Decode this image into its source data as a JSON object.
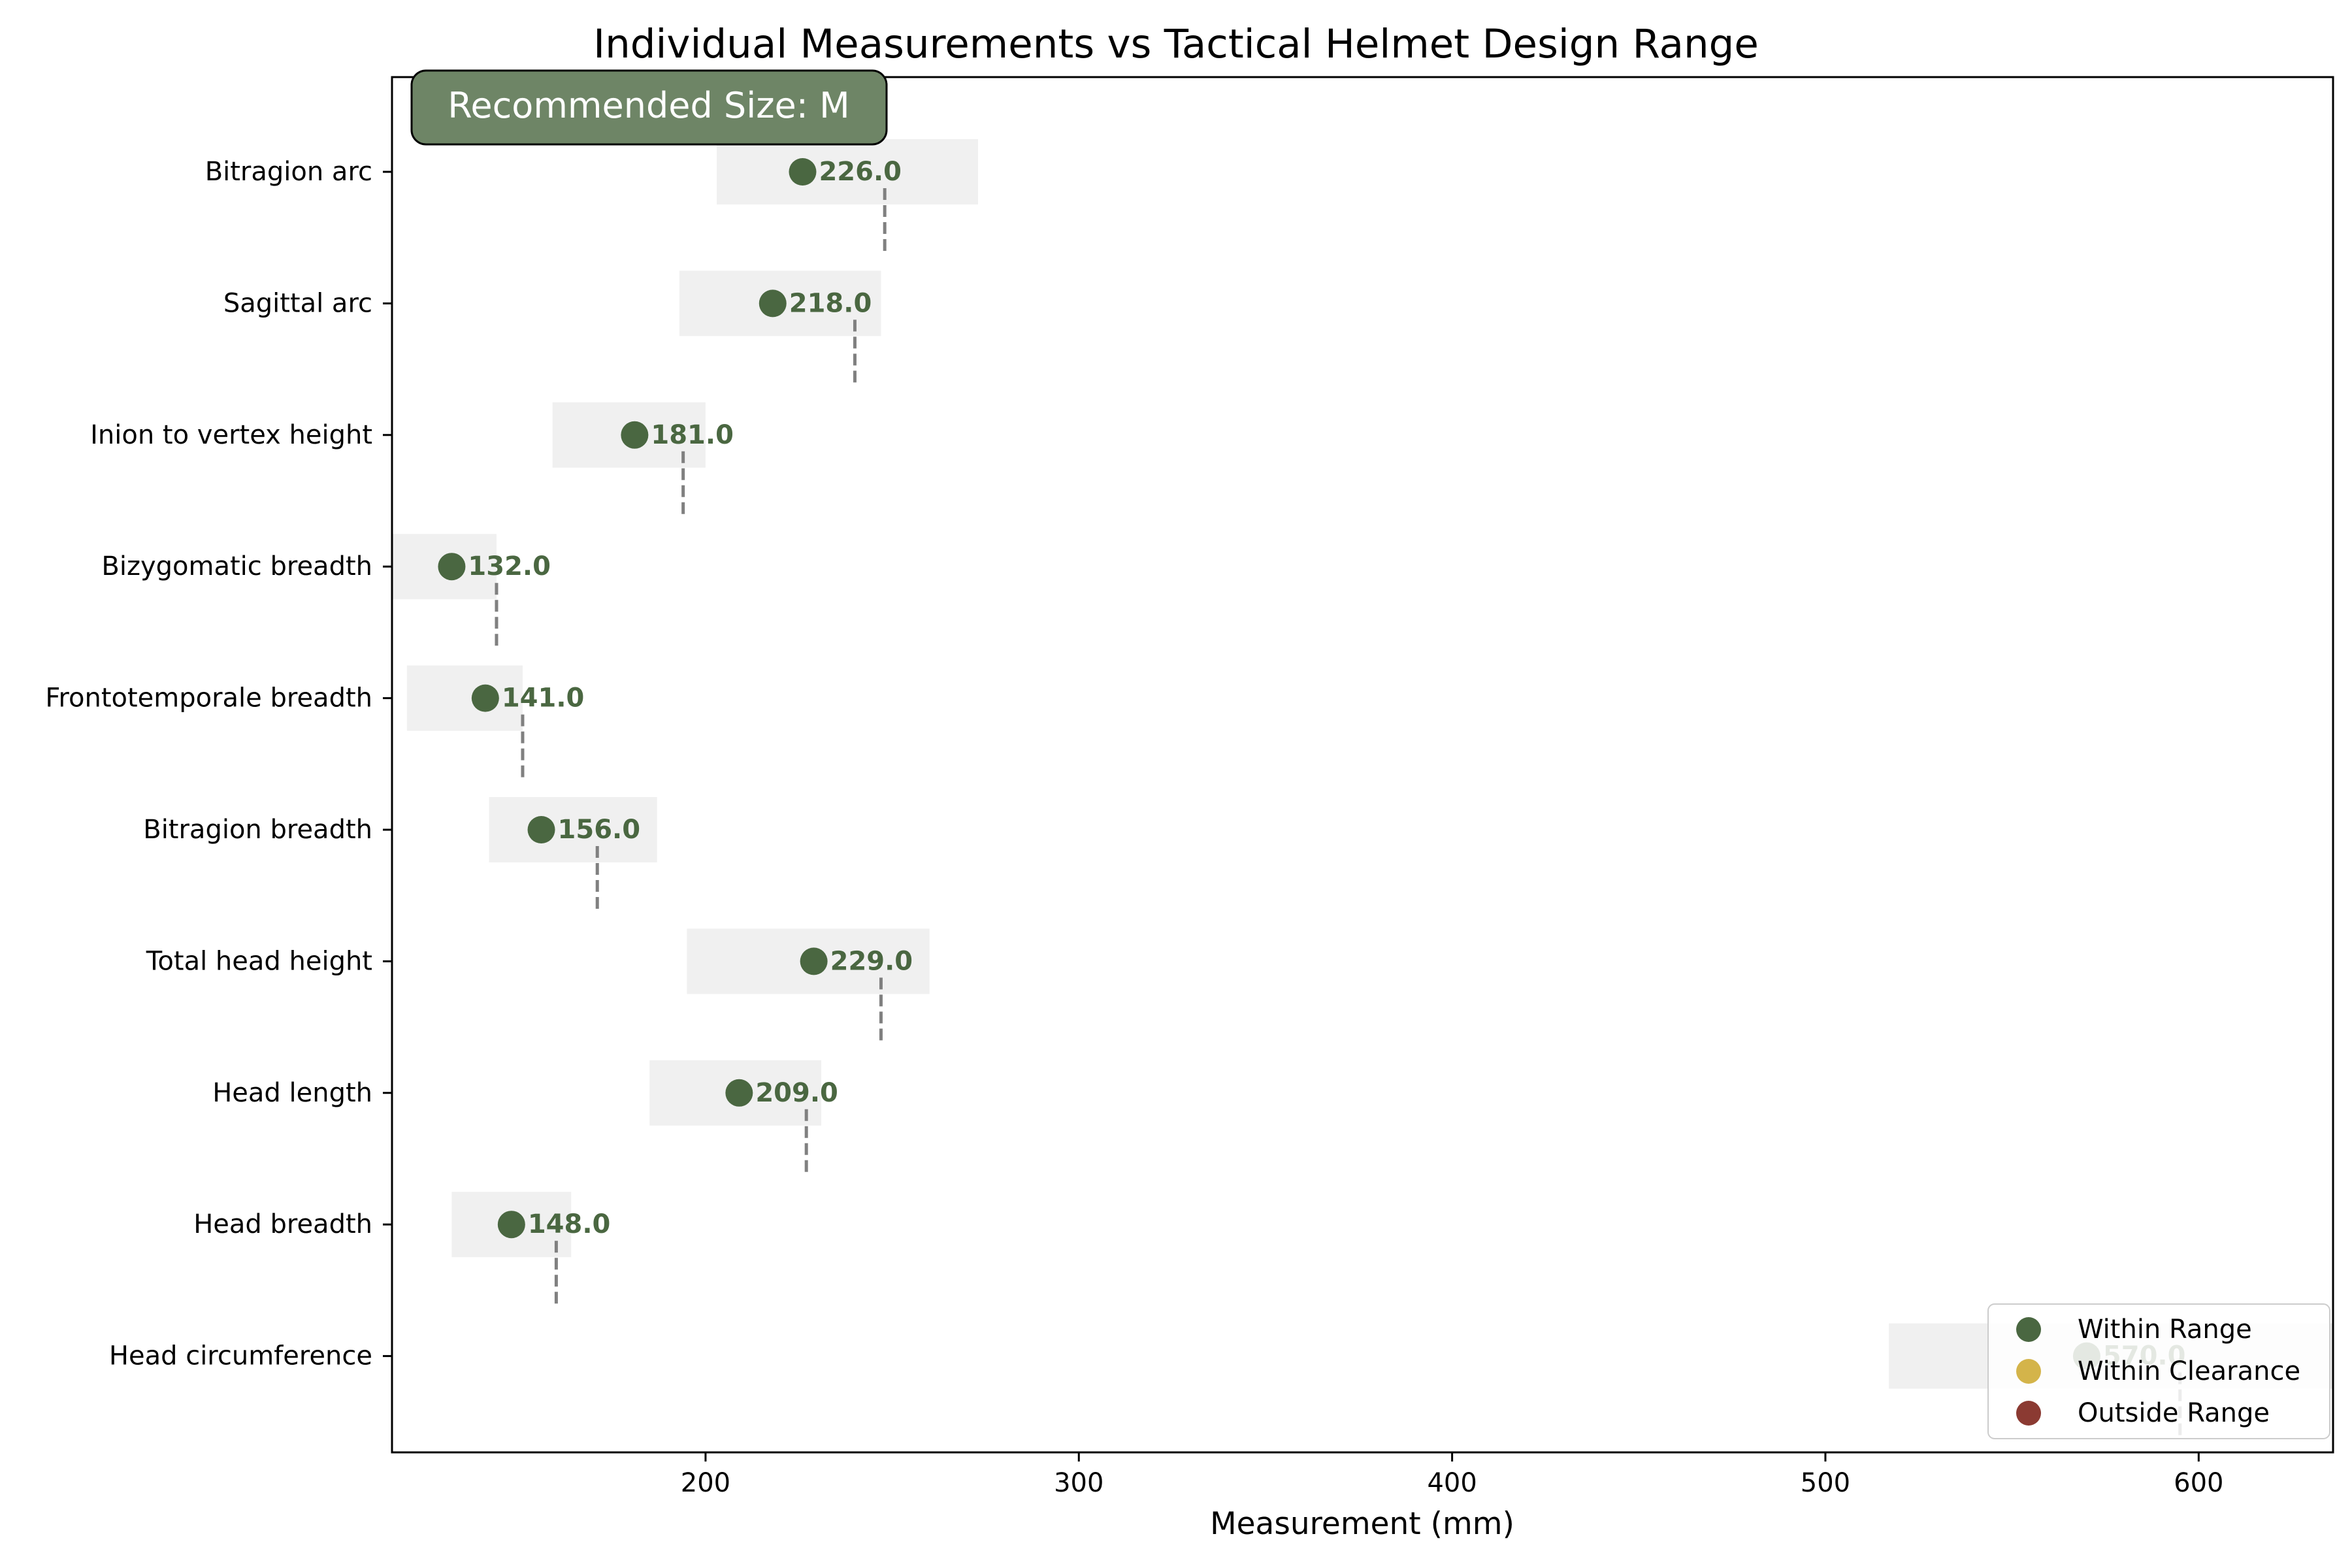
{
  "chart_data": {
    "type": "scatter",
    "title": "Individual Measurements vs Tactical Helmet Design Range",
    "xlabel": "Measurement (mm)",
    "ylabel": "",
    "xlim": [
      116,
      636
    ],
    "x_ticks": [
      200,
      300,
      400,
      500,
      600
    ],
    "grid": false,
    "legend_position": "bottom-right",
    "recommendation": "Recommended Size: M",
    "colors": {
      "within_range": "#4a6741",
      "within_clearance": "#d4b44a",
      "outside_range": "#8b3a32",
      "range_band": "#f0f0f0",
      "design_marker": "#808080",
      "badge_fill": "#6e8566"
    },
    "categories": [
      "Bitragion arc",
      "Sagittal arc",
      "Inion to vertex height",
      "Bizygomatic breadth",
      "Frontotemporale breadth",
      "Bitragion breadth",
      "Total head height",
      "Head length",
      "Head breadth",
      "Head circumference"
    ],
    "measurements": [
      {
        "category": "Bitragion arc",
        "value": 226.0,
        "label": "226.0",
        "range": [
          203,
          273
        ],
        "design": 248,
        "status": "within_range"
      },
      {
        "category": "Sagittal arc",
        "value": 218.0,
        "label": "218.0",
        "range": [
          193,
          247
        ],
        "design": 240,
        "status": "within_range"
      },
      {
        "category": "Inion to vertex height",
        "value": 181.0,
        "label": "181.0",
        "range": [
          159,
          200
        ],
        "design": 194,
        "status": "within_range"
      },
      {
        "category": "Bizygomatic breadth",
        "value": 132.0,
        "label": "132.0",
        "range": [
          116,
          144
        ],
        "design": 144,
        "status": "within_range"
      },
      {
        "category": "Frontotemporale breadth",
        "value": 141.0,
        "label": "141.0",
        "range": [
          120,
          151
        ],
        "design": 151,
        "status": "within_range"
      },
      {
        "category": "Bitragion breadth",
        "value": 156.0,
        "label": "156.0",
        "range": [
          142,
          187
        ],
        "design": 171,
        "status": "within_range"
      },
      {
        "category": "Total head height",
        "value": 229.0,
        "label": "229.0",
        "range": [
          195,
          260
        ],
        "design": 247,
        "status": "within_range"
      },
      {
        "category": "Head length",
        "value": 209.0,
        "label": "209.0",
        "range": [
          185,
          231
        ],
        "design": 227,
        "status": "within_range"
      },
      {
        "category": "Head breadth",
        "value": 148.0,
        "label": "148.0",
        "range": [
          132,
          164
        ],
        "design": 160,
        "status": "within_range"
      },
      {
        "category": "Head circumference",
        "value": 570.0,
        "label": "570.0",
        "range": [
          517,
          636
        ],
        "design": 595,
        "status": "within_range"
      }
    ],
    "legend": [
      {
        "key": "within_range",
        "label": "Within Range"
      },
      {
        "key": "within_clearance",
        "label": "Within Clearance"
      },
      {
        "key": "outside_range",
        "label": "Outside Range"
      }
    ]
  }
}
